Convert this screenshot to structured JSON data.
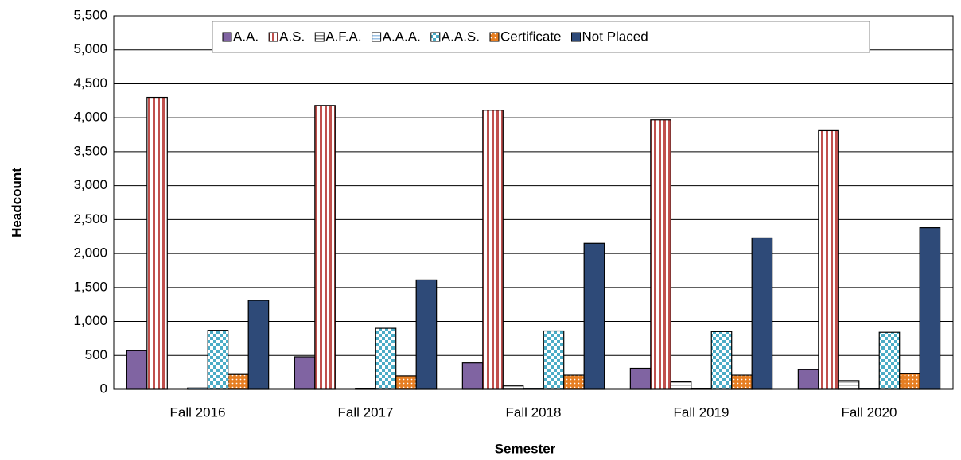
{
  "chart_data": {
    "type": "bar",
    "categories": [
      "Fall 2016",
      "Fall 2017",
      "Fall 2018",
      "Fall 2019",
      "Fall 2020"
    ],
    "series": [
      {
        "name": "A.A.",
        "color": "#8064a2",
        "pattern": "solid",
        "values": [
          570,
          480,
          390,
          310,
          290
        ]
      },
      {
        "name": "A.S.",
        "color": "#c0504d",
        "pattern": "vertical-stripes",
        "values": [
          4300,
          4180,
          4110,
          3970,
          3810
        ]
      },
      {
        "name": "A.F.A.",
        "color": "#8c8c8c",
        "pattern": "horizontal-stripes",
        "values": [
          0,
          0,
          50,
          110,
          130
        ]
      },
      {
        "name": "A.A.A.",
        "color": "#9dc3e6",
        "pattern": "horizontal-stripes",
        "values": [
          20,
          10,
          15,
          10,
          15
        ]
      },
      {
        "name": "A.A.S.",
        "color": "#4bacc6",
        "pattern": "checker",
        "values": [
          870,
          900,
          860,
          850,
          840
        ]
      },
      {
        "name": "Certificate",
        "color": "#e67e22",
        "pattern": "dots",
        "values": [
          220,
          200,
          210,
          210,
          230
        ]
      },
      {
        "name": "Not Placed",
        "color": "#2e4a78",
        "pattern": "solid",
        "values": [
          1310,
          1610,
          2150,
          2230,
          2380
        ]
      }
    ],
    "xlabel": "Semester",
    "ylabel": "Headcount",
    "ylim": [
      0,
      5500
    ],
    "yticks": [
      0,
      500,
      {
        "value": 1000,
        "label": "1,000"
      },
      {
        "value": 1500,
        "label": "1,500"
      },
      {
        "value": 2000,
        "label": "2,000"
      },
      {
        "value": 2500,
        "label": "2,500"
      },
      {
        "value": 3000,
        "label": "3,000"
      },
      {
        "value": 3500,
        "label": "3,500"
      },
      {
        "value": 4000,
        "label": "4,000"
      },
      {
        "value": 4500,
        "label": "4,500"
      },
      {
        "value": 5000,
        "label": "5,000"
      },
      {
        "value": 5500,
        "label": "5,500"
      }
    ],
    "grid": true,
    "legend": "top"
  }
}
